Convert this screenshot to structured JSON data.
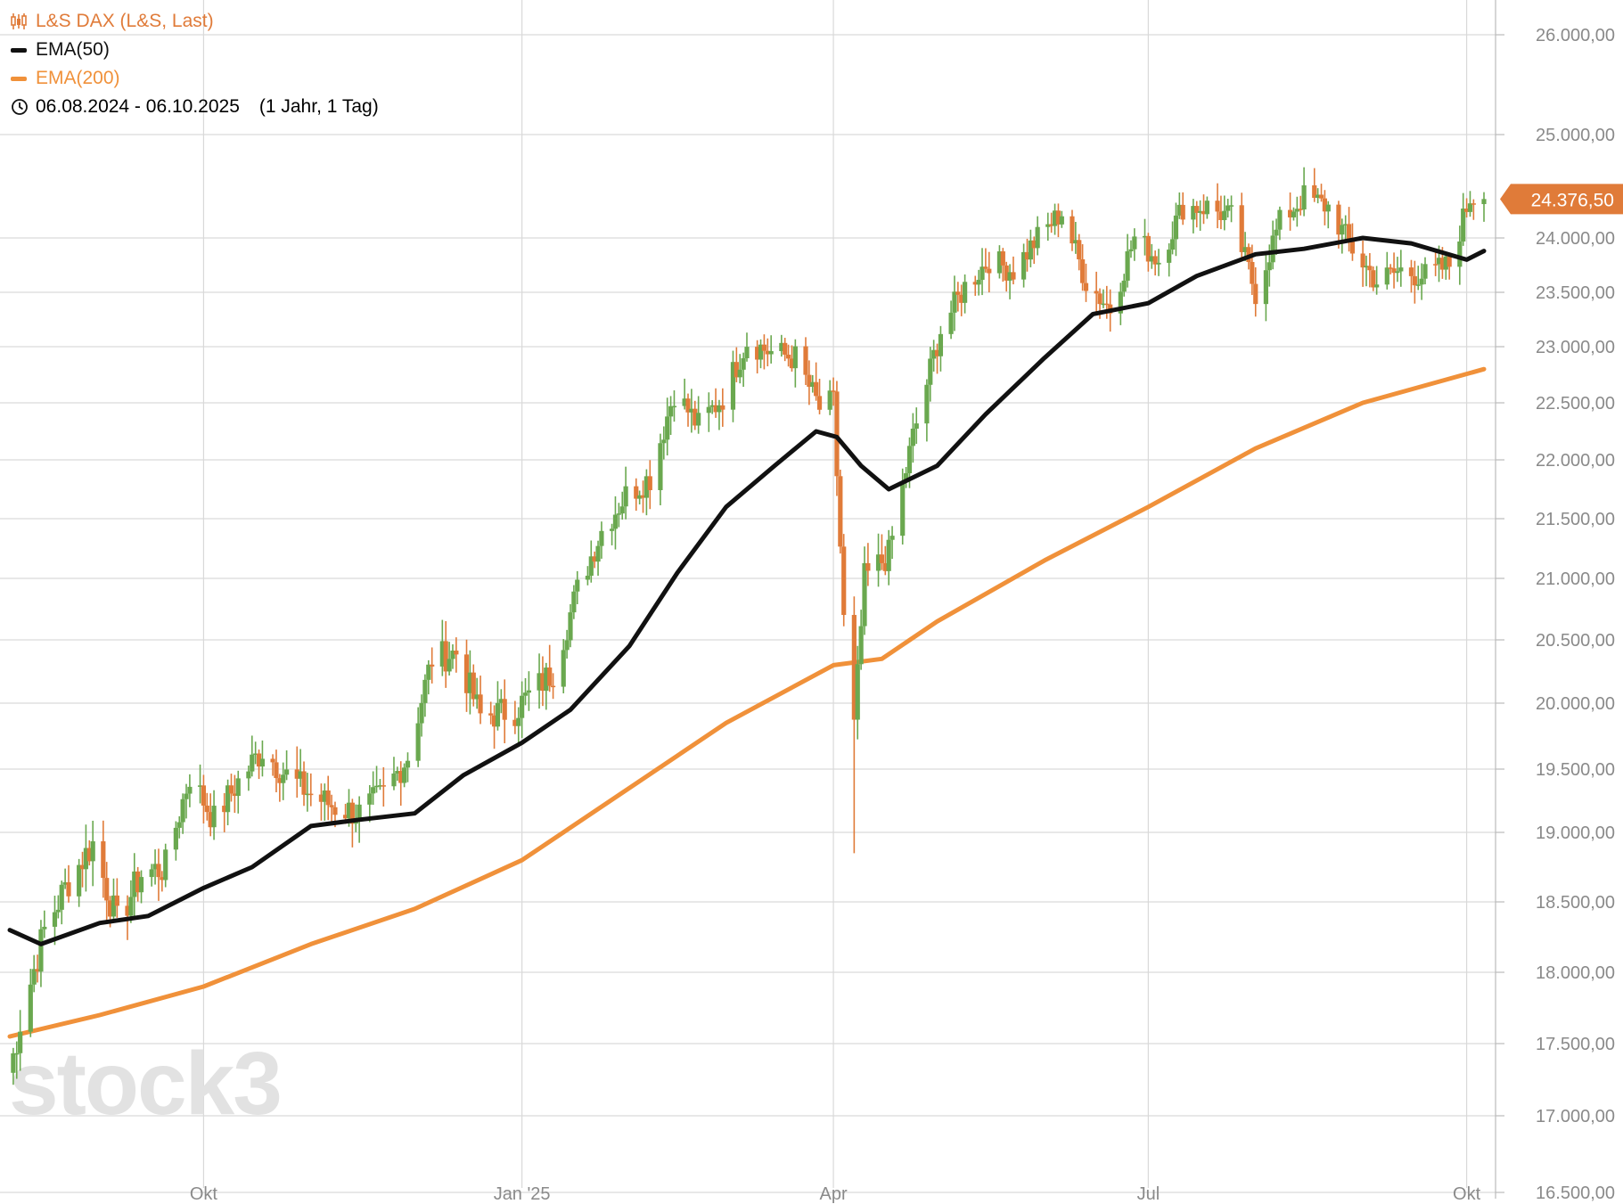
{
  "legend": {
    "instrument": "L&S DAX (L&S, Last)",
    "ema50": "EMA(50)",
    "ema200": "EMA(200)",
    "date_range": "06.08.2024 - 06.10.2025",
    "period": "(1 Jahr, 1 Tag)",
    "candle_icon": "candlestick-icon",
    "clock_icon": "clock-icon"
  },
  "last_price_label": "24.376,50",
  "watermark": "stock3",
  "colors": {
    "up": "#6aa84f",
    "down": "#e07b39",
    "ema50": "#111111",
    "ema200": "#f0913a",
    "instrument_text": "#e07b39",
    "grid": "#d9d9d9",
    "axis_text": "#8a8a8a",
    "price_badge": "#e07b39",
    "watermark": "#e2e2e2"
  },
  "chart_data": {
    "type": "candlestick",
    "x_axis": {
      "type": "date",
      "range": [
        "2024-08-06",
        "2025-10-06"
      ],
      "tick_labels": [
        "Okt",
        "Jan '25",
        "Apr",
        "Jul",
        "Okt"
      ],
      "tick_dates": [
        "2024-10-01",
        "2025-01-01",
        "2025-04-01",
        "2025-07-01",
        "2025-10-01"
      ]
    },
    "y_axis": {
      "position": "right",
      "range": [
        16500,
        26000
      ],
      "ticks": [
        16500,
        17000,
        17500,
        18000,
        18500,
        19000,
        19500,
        20000,
        20500,
        21000,
        21500,
        22000,
        22500,
        23000,
        23500,
        24000,
        25000,
        26000
      ],
      "tick_labels": [
        "16.500,00",
        "17.000,00",
        "17.500,00",
        "18.000,00",
        "18.500,00",
        "19.000,00",
        "19.500,00",
        "20.000,00",
        "20.500,00",
        "21.000,00",
        "21.500,00",
        "22.000,00",
        "22.500,00",
        "23.000,00",
        "23.500,00",
        "24.000,00",
        "25.000,00",
        "26.000,00"
      ]
    },
    "grid": true,
    "legend_position": "top-left",
    "series": [
      {
        "name": "L&S DAX (L&S, Last)",
        "kind": "ohlc",
        "anchors": [
          [
            "2024-08-06",
            17300
          ],
          [
            "2024-08-09",
            17650
          ],
          [
            "2024-08-16",
            18300
          ],
          [
            "2024-08-23",
            18650
          ],
          [
            "2024-08-30",
            18920
          ],
          [
            "2024-09-06",
            18350
          ],
          [
            "2024-09-13",
            18700
          ],
          [
            "2024-09-20",
            18750
          ],
          [
            "2024-09-27",
            19450
          ],
          [
            "2024-10-04",
            19100
          ],
          [
            "2024-10-11",
            19400
          ],
          [
            "2024-10-18",
            19650
          ],
          [
            "2024-10-25",
            19450
          ],
          [
            "2024-11-01",
            19300
          ],
          [
            "2024-11-08",
            19200
          ],
          [
            "2024-11-15",
            19150
          ],
          [
            "2024-11-22",
            19300
          ],
          [
            "2024-11-29",
            19600
          ],
          [
            "2024-12-06",
            20350
          ],
          [
            "2024-12-13",
            20400
          ],
          [
            "2024-12-20",
            19900
          ],
          [
            "2024-12-30",
            19950
          ],
          [
            "2025-01-10",
            20250
          ],
          [
            "2025-01-17",
            20900
          ],
          [
            "2025-01-24",
            21400
          ],
          [
            "2025-01-31",
            21700
          ],
          [
            "2025-02-07",
            21850
          ],
          [
            "2025-02-14",
            22600
          ],
          [
            "2025-02-21",
            22300
          ],
          [
            "2025-02-28",
            22550
          ],
          [
            "2025-03-07",
            23050
          ],
          [
            "2025-03-14",
            22950
          ],
          [
            "2025-03-21",
            22900
          ],
          [
            "2025-03-28",
            22450
          ],
          [
            "2025-04-01",
            22500
          ],
          [
            "2025-04-04",
            20650
          ],
          [
            "2025-04-07",
            19800
          ],
          [
            "2025-04-10",
            21000
          ],
          [
            "2025-04-17",
            21200
          ],
          [
            "2025-04-24",
            22200
          ],
          [
            "2025-05-02",
            23150
          ],
          [
            "2025-05-09",
            23550
          ],
          [
            "2025-05-16",
            23800
          ],
          [
            "2025-05-23",
            23700
          ],
          [
            "2025-05-30",
            24000
          ],
          [
            "2025-06-06",
            24250
          ],
          [
            "2025-06-13",
            23600
          ],
          [
            "2025-06-20",
            23350
          ],
          [
            "2025-06-27",
            24000
          ],
          [
            "2025-07-04",
            23800
          ],
          [
            "2025-07-11",
            24300
          ],
          [
            "2025-07-18",
            24300
          ],
          [
            "2025-07-25",
            24200
          ],
          [
            "2025-08-01",
            23500
          ],
          [
            "2025-08-08",
            24150
          ],
          [
            "2025-08-15",
            24400
          ],
          [
            "2025-08-22",
            24300
          ],
          [
            "2025-08-29",
            23900
          ],
          [
            "2025-09-05",
            23600
          ],
          [
            "2025-09-12",
            23700
          ],
          [
            "2025-09-19",
            23650
          ],
          [
            "2025-09-26",
            23750
          ],
          [
            "2025-10-02",
            24400
          ],
          [
            "2025-10-06",
            24376.5
          ]
        ],
        "low_extremes": [
          [
            "2025-04-07",
            18850
          ]
        ],
        "last": 24376.5
      },
      {
        "name": "EMA(50)",
        "kind": "line",
        "points": [
          [
            "2024-08-06",
            18300
          ],
          [
            "2024-08-15",
            18200
          ],
          [
            "2024-09-01",
            18350
          ],
          [
            "2024-09-15",
            18400
          ],
          [
            "2024-10-01",
            18600
          ],
          [
            "2024-10-15",
            18750
          ],
          [
            "2024-11-01",
            19050
          ],
          [
            "2024-11-15",
            19100
          ],
          [
            "2024-12-01",
            19150
          ],
          [
            "2024-12-15",
            19450
          ],
          [
            "2025-01-01",
            19700
          ],
          [
            "2025-01-15",
            19950
          ],
          [
            "2025-02-01",
            20450
          ],
          [
            "2025-02-15",
            21050
          ],
          [
            "2025-03-01",
            21600
          ],
          [
            "2025-03-15",
            21950
          ],
          [
            "2025-03-27",
            22250
          ],
          [
            "2025-04-02",
            22200
          ],
          [
            "2025-04-09",
            21950
          ],
          [
            "2025-04-17",
            21750
          ],
          [
            "2025-05-01",
            21950
          ],
          [
            "2025-05-15",
            22400
          ],
          [
            "2025-06-01",
            22900
          ],
          [
            "2025-06-15",
            23300
          ],
          [
            "2025-07-01",
            23400
          ],
          [
            "2025-07-15",
            23650
          ],
          [
            "2025-08-01",
            23850
          ],
          [
            "2025-08-15",
            23900
          ],
          [
            "2025-09-01",
            24000
          ],
          [
            "2025-09-15",
            23950
          ],
          [
            "2025-10-01",
            23800
          ],
          [
            "2025-10-06",
            23880
          ]
        ]
      },
      {
        "name": "EMA(200)",
        "kind": "line",
        "points": [
          [
            "2024-08-06",
            17550
          ],
          [
            "2024-09-01",
            17700
          ],
          [
            "2024-10-01",
            17900
          ],
          [
            "2024-11-01",
            18200
          ],
          [
            "2024-12-01",
            18450
          ],
          [
            "2025-01-01",
            18800
          ],
          [
            "2025-02-01",
            19350
          ],
          [
            "2025-03-01",
            19850
          ],
          [
            "2025-04-01",
            20300
          ],
          [
            "2025-04-15",
            20350
          ],
          [
            "2025-05-01",
            20650
          ],
          [
            "2025-06-01",
            21150
          ],
          [
            "2025-07-01",
            21600
          ],
          [
            "2025-08-01",
            22100
          ],
          [
            "2025-09-01",
            22500
          ],
          [
            "2025-10-06",
            22800
          ]
        ]
      }
    ]
  }
}
